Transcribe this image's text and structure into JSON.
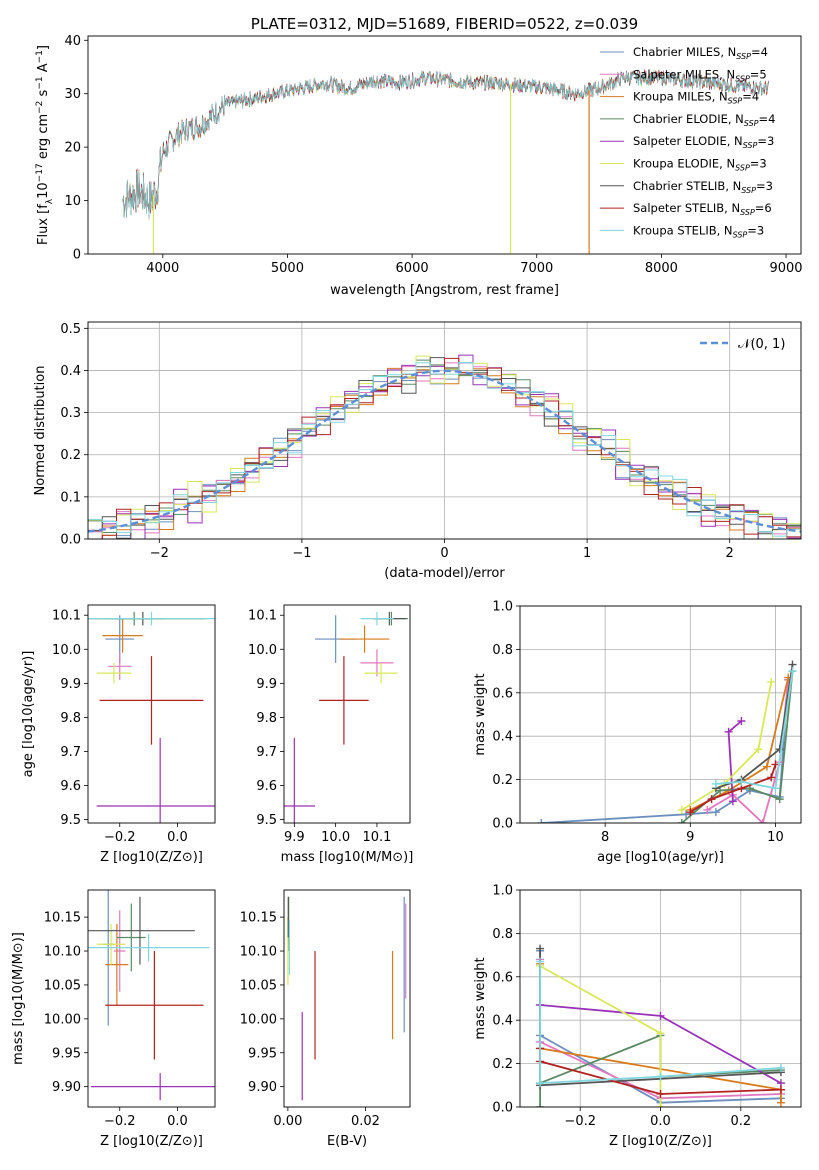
{
  "chart_data": [
    {
      "id": "spectrum",
      "type": "line",
      "title": "PLATE=0312, MJD=51689, FIBERID=0522, z=0.039",
      "xlabel": "wavelength [Angstrom, rest frame]",
      "ylabel": "Flux [f_λ 10^-17 erg cm^-2 s^-1 A^-1]",
      "xlim": [
        3400,
        9120
      ],
      "ylim": [
        0,
        40.8
      ],
      "xticks": [
        4000,
        5000,
        6000,
        7000,
        8000,
        9000
      ],
      "yticks": [
        0,
        10,
        20,
        30,
        40
      ],
      "legend_position": "upper right",
      "spectrum_envelope": {
        "x": [
          3680,
          3750,
          3800,
          3850,
          3900,
          3950,
          4000,
          4100,
          4200,
          4300,
          4400,
          4500,
          4700,
          4900,
          5100,
          5300,
          5500,
          5700,
          5900,
          6100,
          6300,
          6500,
          6700,
          6900,
          7100,
          7200,
          7300,
          7400,
          7500,
          7600,
          7700,
          7800,
          7900,
          8000,
          8200,
          8400,
          8600,
          8860
        ],
        "y": [
          10,
          11,
          12,
          11,
          10,
          12,
          19,
          22,
          23.5,
          24,
          26,
          28,
          29,
          30,
          31,
          32,
          31,
          32.5,
          32,
          33,
          32.5,
          32,
          32,
          31.5,
          31,
          30.5,
          30,
          30.5,
          31,
          32,
          33,
          33,
          33,
          33,
          32.5,
          32,
          31.5,
          31
        ]
      },
      "series": [
        {
          "name": "Chabrier MILES, N_SSP=4",
          "color": "#6c8ebf"
        },
        {
          "name": "Salpeter MILES, N_SSP=5",
          "color": "#e377c2"
        },
        {
          "name": "Kroupa MILES, N_SSP=4",
          "color": "#d97a1b"
        },
        {
          "name": "Chabrier ELODIE, N_SSP=4",
          "color": "#5a8a63"
        },
        {
          "name": "Salpeter ELODIE, N_SSP=3",
          "color": "#9932b8"
        },
        {
          "name": "Kroupa ELODIE, N_SSP=3",
          "color": "#d9e85a"
        },
        {
          "name": "Chabrier STELIB, N_SSP=3",
          "color": "#555555"
        },
        {
          "name": "Salpeter STELIB, N_SSP=6",
          "color": "#b22222"
        },
        {
          "name": "Kroupa STELIB, N_SSP=3",
          "color": "#7fd8e0"
        }
      ],
      "drop_lines": [
        {
          "x": 3925,
          "color": "#d9e85a"
        },
        {
          "x": 6790,
          "color": "#d9e85a"
        },
        {
          "x": 7420,
          "color": "#d97a1b"
        }
      ]
    },
    {
      "id": "residuals",
      "type": "step",
      "xlabel": "(data-model)/error",
      "ylabel": "Normed distribution",
      "xlim": [
        -2.5,
        2.5
      ],
      "ylim": [
        0,
        0.515
      ],
      "xticks": [
        -2,
        -1,
        0,
        1,
        2
      ],
      "yticks": [
        0.0,
        0.1,
        0.2,
        0.3,
        0.4,
        0.5
      ],
      "legend": [
        "𝒩(0, 1)"
      ],
      "normal_color": "#5b8fd9",
      "grid": true,
      "bin_width": 0.1,
      "bin_start": -2.5,
      "series_offsets": [
        [
          0.0,
          0.01,
          -0.01,
          0.02,
          -0.01,
          0.0,
          0.01,
          -0.02,
          0.01,
          0.0
        ],
        [
          0.01,
          -0.01,
          0.02,
          0.0,
          -0.02,
          0.01,
          0.0,
          0.02,
          -0.01,
          0.01
        ],
        [
          -0.01,
          0.02,
          0.0,
          -0.01,
          0.02,
          -0.02,
          0.01,
          0.0,
          0.01,
          -0.01
        ],
        [
          0.02,
          0.0,
          -0.01,
          0.01,
          0.0,
          0.02,
          -0.02,
          0.01,
          0.0,
          0.01
        ],
        [
          -0.02,
          0.01,
          0.03,
          -0.02,
          0.01,
          0.0,
          0.03,
          -0.03,
          0.02,
          0.0
        ],
        [
          0.01,
          -0.02,
          0.01,
          0.02,
          -0.01,
          0.01,
          0.0,
          0.03,
          -0.02,
          0.01
        ],
        [
          0.0,
          0.01,
          -0.02,
          0.0,
          0.02,
          -0.01,
          0.01,
          0.0,
          -0.01,
          0.02
        ],
        [
          -0.01,
          0.0,
          0.02,
          -0.01,
          0.0,
          0.02,
          -0.01,
          0.01,
          0.01,
          -0.02
        ],
        [
          0.01,
          0.02,
          -0.01,
          0.01,
          -0.02,
          0.0,
          0.02,
          -0.01,
          0.0,
          0.01
        ]
      ]
    },
    {
      "id": "age_vs_Z",
      "type": "errorbar",
      "xlabel": "Z [log10(Z/Z⊙)]",
      "ylabel": "age  [log10(age/yr)]",
      "xlim": [
        -0.31,
        0.13
      ],
      "ylim": [
        9.49,
        10.13
      ],
      "xticks": [
        -0.2,
        0.0
      ],
      "yticks": [
        9.5,
        9.6,
        9.7,
        9.8,
        9.9,
        10.0,
        10.1
      ],
      "points": [
        {
          "x": -0.2,
          "y": 10.03,
          "xerr": 0.05,
          "yerr": 0.07,
          "color": "#6c8ebf"
        },
        {
          "x": -0.2,
          "y": 9.95,
          "xerr": 0.04,
          "yerr": 0.04,
          "color": "#e377c2"
        },
        {
          "x": -0.19,
          "y": 10.04,
          "xerr": 0.07,
          "yerr": 0.05,
          "color": "#d97a1b"
        },
        {
          "x": -0.15,
          "y": 10.09,
          "xerr": 0.1,
          "yerr": 0.02,
          "color": "#5a8a63"
        },
        {
          "x": -0.06,
          "y": 9.54,
          "xerr": 0.22,
          "yerr": 0.2,
          "color": "#9932b8"
        },
        {
          "x": -0.22,
          "y": 9.93,
          "xerr": 0.06,
          "yerr": 0.03,
          "color": "#d9e85a"
        },
        {
          "x": -0.12,
          "y": 10.09,
          "xerr": 0.22,
          "yerr": 0.02,
          "color": "#555555"
        },
        {
          "x": -0.09,
          "y": 9.85,
          "xerr": 0.18,
          "yerr": 0.13,
          "color": "#b22222"
        },
        {
          "x": -0.09,
          "y": 10.09,
          "xerr": 0.22,
          "yerr": 0.02,
          "color": "#7fd8e0"
        }
      ]
    },
    {
      "id": "age_vs_mass",
      "type": "errorbar",
      "xlabel": "mass [log10(M/M⊙)]",
      "ylabel": "",
      "xlim": [
        9.875,
        10.18
      ],
      "ylim": [
        9.49,
        10.13
      ],
      "xticks": [
        9.9,
        10.0,
        10.1
      ],
      "yticks": [
        9.5,
        9.6,
        9.7,
        9.8,
        9.9,
        10.0,
        10.1
      ],
      "points": [
        {
          "x": 10.0,
          "y": 10.03,
          "xerr": 0.05,
          "yerr": 0.07,
          "color": "#6c8ebf"
        },
        {
          "x": 10.1,
          "y": 9.96,
          "xerr": 0.04,
          "yerr": 0.04,
          "color": "#e377c2"
        },
        {
          "x": 10.07,
          "y": 10.03,
          "xerr": 0.06,
          "yerr": 0.04,
          "color": "#d97a1b"
        },
        {
          "x": 10.135,
          "y": 10.09,
          "xerr": 0.04,
          "yerr": 0.02,
          "color": "#5a8a63"
        },
        {
          "x": 9.9,
          "y": 9.54,
          "xerr": 0.05,
          "yerr": 0.2,
          "color": "#9932b8"
        },
        {
          "x": 10.11,
          "y": 9.93,
          "xerr": 0.04,
          "yerr": 0.03,
          "color": "#d9e85a"
        },
        {
          "x": 10.13,
          "y": 10.09,
          "xerr": 0.04,
          "yerr": 0.02,
          "color": "#555555"
        },
        {
          "x": 10.02,
          "y": 9.85,
          "xerr": 0.06,
          "yerr": 0.13,
          "color": "#b22222"
        },
        {
          "x": 10.1,
          "y": 10.09,
          "xerr": 0.04,
          "yerr": 0.02,
          "color": "#7fd8e0"
        }
      ]
    },
    {
      "id": "weight_vs_age",
      "type": "line",
      "xlabel": "age  [log10(age/yr)]",
      "ylabel": "mass weight",
      "xlim": [
        7.0,
        10.3
      ],
      "ylim": [
        0,
        1.0
      ],
      "xticks": [
        8,
        9,
        10
      ],
      "yticks": [
        0.0,
        0.2,
        0.4,
        0.6,
        0.8,
        1.0
      ],
      "grid": true,
      "series": [
        {
          "color": "#6c8ebf",
          "x": [
            7.25,
            8.95,
            9.3,
            9.7,
            10.05,
            10.15
          ],
          "y": [
            0.0,
            0.04,
            0.05,
            0.15,
            0.12,
            0.66
          ]
        },
        {
          "color": "#e377c2",
          "x": [
            9.2,
            9.5,
            9.85,
            10.05,
            10.15
          ],
          "y": [
            0.06,
            0.13,
            0.0,
            0.28,
            0.66
          ]
        },
        {
          "color": "#d97a1b",
          "x": [
            9.0,
            9.45,
            9.9,
            10.15
          ],
          "y": [
            0.06,
            0.15,
            0.26,
            0.67
          ]
        },
        {
          "color": "#5a8a63",
          "x": [
            8.9,
            9.35,
            9.7,
            10.05,
            10.2
          ],
          "y": [
            0.0,
            0.15,
            0.16,
            0.11,
            0.7
          ]
        },
        {
          "color": "#9932b8",
          "x": [
            9.5,
            9.45,
            9.6
          ],
          "y": [
            0.1,
            0.42,
            0.47
          ]
        },
        {
          "color": "#d9e85a",
          "x": [
            8.9,
            9.4,
            9.8,
            9.95
          ],
          "y": [
            0.06,
            0.18,
            0.34,
            0.65
          ]
        },
        {
          "color": "#555555",
          "x": [
            9.3,
            9.6,
            10.05,
            10.2
          ],
          "y": [
            0.16,
            0.2,
            0.34,
            0.73
          ]
        },
        {
          "color": "#b22222",
          "x": [
            9.0,
            9.25,
            9.6,
            9.95,
            10.0
          ],
          "y": [
            0.05,
            0.11,
            0.16,
            0.21,
            0.27
          ]
        },
        {
          "color": "#7fd8e0",
          "x": [
            9.3,
            9.6,
            10.0,
            10.2
          ],
          "y": [
            0.18,
            0.19,
            0.16,
            0.7
          ]
        }
      ]
    },
    {
      "id": "mass_vs_Z",
      "type": "errorbar",
      "xlabel": "Z [log10(Z/Z⊙)]",
      "ylabel": "mass [log10(M/M⊙)]",
      "xlim": [
        -0.31,
        0.13
      ],
      "ylim": [
        9.87,
        10.19
      ],
      "xticks": [
        -0.2,
        0.0
      ],
      "yticks": [
        9.9,
        9.95,
        10.0,
        10.05,
        10.1,
        10.15
      ],
      "points": [
        {
          "x": -0.24,
          "y": 10.11,
          "xerr": 0.02,
          "yerr": 0.12,
          "color": "#6c8ebf"
        },
        {
          "x": -0.2,
          "y": 10.1,
          "xerr": 0.02,
          "yerr": 0.06,
          "color": "#e377c2"
        },
        {
          "x": -0.21,
          "y": 10.08,
          "xerr": 0.04,
          "yerr": 0.06,
          "color": "#d97a1b"
        },
        {
          "x": -0.16,
          "y": 10.12,
          "xerr": 0.05,
          "yerr": 0.05,
          "color": "#5a8a63"
        },
        {
          "x": -0.06,
          "y": 9.9,
          "xerr": 0.24,
          "yerr": 0.02,
          "color": "#9932b8"
        },
        {
          "x": -0.23,
          "y": 10.11,
          "xerr": 0.05,
          "yerr": 0.03,
          "color": "#d9e85a"
        },
        {
          "x": -0.13,
          "y": 10.13,
          "xerr": 0.19,
          "yerr": 0.05,
          "color": "#555555"
        },
        {
          "x": -0.08,
          "y": 10.02,
          "xerr": 0.17,
          "yerr": 0.08,
          "color": "#b22222"
        },
        {
          "x": -0.1,
          "y": 10.105,
          "xerr": 0.21,
          "yerr": 0.02,
          "color": "#7fd8e0"
        }
      ]
    },
    {
      "id": "mass_vs_EBV",
      "type": "errorbar",
      "xlabel": "E(B-V)",
      "ylabel": "",
      "xlim": [
        -0.001,
        0.0315
      ],
      "ylim": [
        9.87,
        10.19
      ],
      "xticks": [
        0.0,
        0.02
      ],
      "yticks": [
        9.9,
        9.95,
        10.0,
        10.05,
        10.1,
        10.15
      ],
      "points": [
        {
          "x": 0.03,
          "y": 10.08,
          "yerr": 0.1,
          "color": "#6c8ebf"
        },
        {
          "x": 0.0304,
          "y": 10.1,
          "yerr": 0.07,
          "color": "#e377c2"
        },
        {
          "x": 0.027,
          "y": 10.035,
          "yerr": 0.065,
          "color": "#d97a1b"
        },
        {
          "x": 0.0002,
          "y": 10.14,
          "yerr": 0.04,
          "color": "#5a8a63"
        },
        {
          "x": 0.0037,
          "y": 9.945,
          "yerr": 0.065,
          "color": "#9932b8"
        },
        {
          "x": 0.0,
          "y": 10.1,
          "yerr": 0.05,
          "color": "#d9e85a"
        },
        {
          "x": 0.0001,
          "y": 10.15,
          "yerr": 0.03,
          "color": "#555555"
        },
        {
          "x": 0.007,
          "y": 10.02,
          "yerr": 0.08,
          "color": "#b22222"
        },
        {
          "x": 0.0004,
          "y": 10.105,
          "yerr": 0.04,
          "color": "#7fd8e0"
        }
      ]
    },
    {
      "id": "weight_vs_Z",
      "type": "line",
      "xlabel": "Z [log10(Z/Z⊙)]",
      "ylabel": "mass weight",
      "xlim": [
        -0.35,
        0.35
      ],
      "ylim": [
        0,
        1.0
      ],
      "xticks": [
        -0.2,
        0.0,
        0.2
      ],
      "yticks": [
        0.0,
        0.2,
        0.4,
        0.6,
        0.8,
        1.0
      ],
      "grid": true,
      "series": [
        {
          "color": "#6c8ebf",
          "x": [
            -0.3,
            -0.3,
            0.0,
            0.3
          ],
          "y": [
            0.72,
            0.33,
            0.02,
            0.04
          ]
        },
        {
          "color": "#e377c2",
          "x": [
            -0.3,
            -0.3,
            0.0,
            0.3
          ],
          "y": [
            0.68,
            0.3,
            0.04,
            0.06
          ]
        },
        {
          "color": "#d97a1b",
          "x": [
            -0.3,
            -0.3,
            0.3,
            0.3
          ],
          "y": [
            0.66,
            0.27,
            0.08,
            0.02
          ]
        },
        {
          "color": "#5a8a63",
          "x": [
            -0.3,
            -0.3,
            0.0,
            0.0,
            0.3
          ],
          "y": [
            0.0,
            0.11,
            0.33,
            0.14,
            0.17
          ]
        },
        {
          "color": "#9932b8",
          "x": [
            -0.3,
            0.0,
            0.3
          ],
          "y": [
            0.47,
            0.42,
            0.11
          ]
        },
        {
          "color": "#d9e85a",
          "x": [
            -0.3,
            0.0,
            0.0
          ],
          "y": [
            0.65,
            0.34,
            0.0
          ]
        },
        {
          "color": "#555555",
          "x": [
            -0.3,
            -0.3,
            0.3
          ],
          "y": [
            0.73,
            0.1,
            0.16
          ]
        },
        {
          "color": "#b22222",
          "x": [
            -0.3,
            -0.3,
            0.0,
            0.3
          ],
          "y": [
            0.27,
            0.21,
            0.06,
            0.08
          ]
        },
        {
          "color": "#7fd8e0",
          "x": [
            -0.3,
            -0.3,
            0.0,
            0.3
          ],
          "y": [
            0.67,
            0.11,
            0.14,
            0.18
          ]
        }
      ]
    }
  ]
}
